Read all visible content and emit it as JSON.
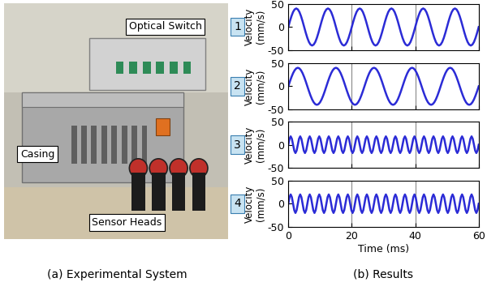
{
  "panel_a": {
    "labels": [
      "Optical Switch",
      "Casing",
      "Sensor Heads"
    ],
    "caption": "(a) Experimental System"
  },
  "panel_b": {
    "caption": "(b) Results"
  },
  "chart_data": [
    {
      "type": "line",
      "title": "1",
      "y_label": "Velocity\n(mm/s)",
      "x": [
        0,
        0.5,
        1,
        1.5,
        2,
        2.5,
        3,
        3.5,
        4,
        4.5,
        5,
        5.5,
        6,
        6.5,
        7,
        7.5,
        8,
        8.5,
        9,
        9.5,
        10,
        10.5,
        11,
        11.5,
        12,
        12.5,
        13,
        13.5,
        14,
        14.5,
        15,
        15.5,
        16,
        16.5,
        17,
        17.5,
        18,
        18.5,
        19,
        19.5,
        20,
        20.5,
        21,
        21.5,
        22,
        22.5,
        23,
        23.5,
        24,
        24.5,
        25,
        25.5,
        26,
        26.5,
        27,
        27.5,
        28,
        28.5,
        29,
        29.5,
        30,
        30.5,
        31,
        31.5,
        32,
        32.5,
        33,
        33.5,
        34,
        34.5,
        35,
        35.5,
        36,
        36.5,
        37,
        37.5,
        38,
        38.5,
        39,
        39.5,
        40,
        40.5,
        41,
        41.5,
        42,
        42.5,
        43,
        43.5,
        44,
        44.5,
        45,
        45.5,
        46,
        46.5,
        47,
        47.5,
        48,
        48.5,
        49,
        49.5,
        50,
        50.5,
        51,
        51.5,
        52,
        52.5,
        53,
        53.5,
        54,
        54.5,
        55,
        55.5,
        56,
        56.5,
        57,
        57.5,
        58,
        58.5,
        59,
        59.5,
        60
      ],
      "series": [
        {
          "color": "#2b2bd6",
          "values": [
            0,
            12.4,
            23.5,
            32.4,
            38,
            40,
            38,
            32.4,
            23.5,
            12.4,
            0,
            -12.4,
            -23.5,
            -32.4,
            -38,
            -40,
            -38,
            -32.4,
            -23.5,
            -12.4,
            0,
            12.4,
            23.5,
            32.4,
            38,
            40,
            38,
            32.4,
            23.5,
            12.4,
            0,
            -12.4,
            -23.5,
            -32.4,
            -38,
            -40,
            -38,
            -32.4,
            -23.5,
            -12.4,
            0,
            12.4,
            23.5,
            32.4,
            38,
            40,
            38,
            32.4,
            23.5,
            12.4,
            0,
            -12.4,
            -23.5,
            -32.4,
            -38,
            -40,
            -38,
            -32.4,
            -23.5,
            -12.4,
            0,
            12.4,
            23.5,
            32.4,
            38,
            40,
            38,
            32.4,
            23.5,
            12.4,
            0,
            -12.4,
            -23.5,
            -32.4,
            -38,
            -40,
            -38,
            -32.4,
            -23.5,
            -12.4,
            0,
            12.4,
            23.5,
            32.4,
            38,
            40,
            38,
            32.4,
            23.5,
            12.4,
            0,
            -12.4,
            -23.5,
            -32.4,
            -38,
            -40,
            -38,
            -32.4,
            -23.5,
            -12.4,
            0,
            12.4,
            23.5,
            32.4,
            38,
            40,
            38,
            32.4,
            23.5,
            12.4,
            0,
            -12.4,
            -23.5,
            -32.4,
            -38,
            -40,
            -38,
            -32.4,
            -23.5,
            -12.4,
            0
          ]
        }
      ],
      "xlim": [
        0,
        60
      ],
      "xticks": [
        0,
        20,
        40,
        60
      ],
      "ylim": [
        -50,
        50
      ],
      "yticks": [
        -50,
        0,
        50
      ],
      "grid": "x",
      "tick_labels": "y"
    },
    {
      "type": "line",
      "title": "2",
      "y_label": "Velocity\n(mm/s)",
      "x": [
        0,
        0.5,
        1,
        1.5,
        2,
        2.5,
        3,
        3.5,
        4,
        4.5,
        5,
        5.5,
        6,
        6.5,
        7,
        7.5,
        8,
        8.5,
        9,
        9.5,
        10,
        10.5,
        11,
        11.5,
        12,
        12.5,
        13,
        13.5,
        14,
        14.5,
        15,
        15.5,
        16,
        16.5,
        17,
        17.5,
        18,
        18.5,
        19,
        19.5,
        20,
        20.5,
        21,
        21.5,
        22,
        22.5,
        23,
        23.5,
        24,
        24.5,
        25,
        25.5,
        26,
        26.5,
        27,
        27.5,
        28,
        28.5,
        29,
        29.5,
        30,
        30.5,
        31,
        31.5,
        32,
        32.5,
        33,
        33.5,
        34,
        34.5,
        35,
        35.5,
        36,
        36.5,
        37,
        37.5,
        38,
        38.5,
        39,
        39.5,
        40,
        40.5,
        41,
        41.5,
        42,
        42.5,
        43,
        43.5,
        44,
        44.5,
        45,
        45.5,
        46,
        46.5,
        47,
        47.5,
        48,
        48.5,
        49,
        49.5,
        50,
        50.5,
        51,
        51.5,
        52,
        52.5,
        53,
        53.5,
        54,
        54.5,
        55,
        55.5,
        56,
        56.5,
        57,
        57.5,
        58,
        58.5,
        59,
        59.5,
        60
      ],
      "series": [
        {
          "color": "#2b2bd6",
          "values": [
            0,
            10.4,
            20,
            28.3,
            34.6,
            38.6,
            40,
            38.6,
            34.6,
            28.3,
            20,
            10.4,
            0,
            -10.4,
            -20,
            -28.3,
            -34.6,
            -38.6,
            -40,
            -38.6,
            -34.6,
            -28.3,
            -20,
            -10.4,
            0,
            10.4,
            20,
            28.3,
            34.6,
            38.6,
            40,
            38.6,
            34.6,
            28.3,
            20,
            10.4,
            0,
            -10.4,
            -20,
            -28.3,
            -34.6,
            -38.6,
            -40,
            -38.6,
            -34.6,
            -28.3,
            -20,
            -10.4,
            0,
            10.4,
            20,
            28.3,
            34.6,
            38.6,
            40,
            38.6,
            34.6,
            28.3,
            20,
            10.4,
            0,
            -10.4,
            -20,
            -28.3,
            -34.6,
            -38.6,
            -40,
            -38.6,
            -34.6,
            -28.3,
            -20,
            -10.4,
            0,
            10.4,
            20,
            28.3,
            34.6,
            38.6,
            40,
            38.6,
            34.6,
            28.3,
            20,
            10.4,
            0,
            -10.4,
            -20,
            -28.3,
            -34.6,
            -38.6,
            -40,
            -38.6,
            -34.6,
            -28.3,
            -20,
            -10.4,
            0,
            10.4,
            20,
            28.3,
            34.6,
            38.6,
            40,
            38.6,
            34.6,
            28.3,
            20,
            10.4,
            0,
            -10.4,
            -20,
            -28.3,
            -34.6,
            -38.6,
            -40,
            -38.6,
            -34.6,
            -28.3,
            -20,
            -10.4,
            0
          ]
        }
      ],
      "xlim": [
        0,
        60
      ],
      "xticks": [
        0,
        20,
        40,
        60
      ],
      "ylim": [
        -50,
        50
      ],
      "yticks": [
        -50,
        0,
        50
      ],
      "grid": "x",
      "tick_labels": "y"
    },
    {
      "type": "line",
      "title": "3",
      "y_label": "Velocity\n(mm/s)",
      "x": [
        0,
        0.375,
        0.75,
        1.125,
        1.5,
        1.875,
        2.25,
        2.625,
        3,
        3.375,
        3.75,
        4.125,
        4.5,
        4.875,
        5.25,
        5.625,
        6,
        6.375,
        6.75,
        7.125,
        7.5,
        7.875,
        8.25,
        8.625,
        9,
        9.375,
        9.75,
        10.125,
        10.5,
        10.875,
        11.25,
        11.625,
        12,
        12.375,
        12.75,
        13.125,
        13.5,
        13.875,
        14.25,
        14.625,
        15,
        15.375,
        15.75,
        16.125,
        16.5,
        16.875,
        17.25,
        17.625,
        18,
        18.375,
        18.75,
        19.125,
        19.5,
        19.875,
        20.25,
        20.625,
        21,
        21.375,
        21.75,
        22.125,
        22.5,
        22.875,
        23.25,
        23.625,
        24,
        24.375,
        24.75,
        25.125,
        25.5,
        25.875,
        26.25,
        26.625,
        27,
        27.375,
        27.75,
        28.125,
        28.5,
        28.875,
        29.25,
        29.625,
        30,
        30.375,
        30.75,
        31.125,
        31.5,
        31.875,
        32.25,
        32.625,
        33,
        33.375,
        33.75,
        34.125,
        34.5,
        34.875,
        35.25,
        35.625,
        36,
        36.375,
        36.75,
        37.125,
        37.5,
        37.875,
        38.25,
        38.625,
        39,
        39.375,
        39.75,
        40.125,
        40.5,
        40.875,
        41.25,
        41.625,
        42,
        42.375,
        42.75,
        43.125,
        43.5,
        43.875,
        44.25,
        44.625,
        45,
        45.375,
        45.75,
        46.125,
        46.5,
        46.875,
        47.25,
        47.625,
        48,
        48.375,
        48.75,
        49.125,
        49.5,
        49.875,
        50.25,
        50.625,
        51,
        51.375,
        51.75,
        52.125,
        52.5,
        52.875,
        53.25,
        53.625,
        54,
        54.375,
        54.75,
        55.125,
        55.5,
        55.875,
        56.25,
        56.625,
        57,
        57.375,
        57.75,
        58.125,
        58.5,
        58.875,
        59.25,
        59.625,
        60
      ],
      "series": [
        {
          "color": "#2b2bd6",
          "values": [
            0,
            12.7,
            18,
            12.7,
            0,
            -12.7,
            -18,
            -12.7,
            0,
            12.7,
            18,
            12.7,
            0,
            -12.7,
            -18,
            -12.7,
            0,
            12.7,
            18,
            12.7,
            0,
            -12.7,
            -18,
            -12.7,
            0,
            12.7,
            18,
            12.7,
            0,
            -12.7,
            -18,
            -12.7,
            0,
            12.7,
            18,
            12.7,
            0,
            -12.7,
            -18,
            -12.7,
            0,
            12.7,
            18,
            12.7,
            0,
            -12.7,
            -18,
            -12.7,
            0,
            12.7,
            18,
            12.7,
            0,
            -12.7,
            -18,
            -12.7,
            0,
            12.7,
            18,
            12.7,
            0,
            -12.7,
            -18,
            -12.7,
            0,
            12.7,
            18,
            12.7,
            0,
            -12.7,
            -18,
            -12.7,
            0,
            12.7,
            18,
            12.7,
            0,
            -12.7,
            -18,
            -12.7,
            0,
            12.7,
            18,
            12.7,
            0,
            -12.7,
            -18,
            -12.7,
            0,
            12.7,
            18,
            12.7,
            0,
            -12.7,
            -18,
            -12.7,
            0,
            12.7,
            18,
            12.7,
            0,
            -12.7,
            -18,
            -12.7,
            0,
            12.7,
            18,
            12.7,
            0,
            -12.7,
            -18,
            -12.7,
            0,
            12.7,
            18,
            12.7,
            0,
            -12.7,
            -18,
            -12.7,
            0,
            12.7,
            18,
            12.7,
            0,
            -12.7,
            -18,
            -12.7,
            0,
            12.7,
            18,
            12.7,
            0,
            -12.7,
            -18,
            -12.7,
            0,
            12.7,
            18,
            12.7,
            0,
            -12.7,
            -18,
            -12.7,
            0,
            12.7,
            18,
            12.7,
            0,
            -12.7,
            -18,
            -12.7,
            0,
            12.7,
            18,
            12.7,
            0,
            -12.7,
            -18,
            -12.7,
            0
          ]
        }
      ],
      "xlim": [
        0,
        60
      ],
      "xticks": [
        0,
        20,
        40,
        60
      ],
      "ylim": [
        -50,
        50
      ],
      "yticks": [
        -50,
        0,
        50
      ],
      "grid": "x",
      "tick_labels": "y"
    },
    {
      "type": "line",
      "title": "4",
      "y_label": "Velocity\n(mm/s)",
      "x_label": "Time (ms)",
      "x": [
        0,
        0.375,
        0.75,
        1.125,
        1.5,
        1.875,
        2.25,
        2.625,
        3,
        3.375,
        3.75,
        4.125,
        4.5,
        4.875,
        5.25,
        5.625,
        6,
        6.375,
        6.75,
        7.125,
        7.5,
        7.875,
        8.25,
        8.625,
        9,
        9.375,
        9.75,
        10.125,
        10.5,
        10.875,
        11.25,
        11.625,
        12,
        12.375,
        12.75,
        13.125,
        13.5,
        13.875,
        14.25,
        14.625,
        15,
        15.375,
        15.75,
        16.125,
        16.5,
        16.875,
        17.25,
        17.625,
        18,
        18.375,
        18.75,
        19.125,
        19.5,
        19.875,
        20.25,
        20.625,
        21,
        21.375,
        21.75,
        22.125,
        22.5,
        22.875,
        23.25,
        23.625,
        24,
        24.375,
        24.75,
        25.125,
        25.5,
        25.875,
        26.25,
        26.625,
        27,
        27.375,
        27.75,
        28.125,
        28.5,
        28.875,
        29.25,
        29.625,
        30,
        30.375,
        30.75,
        31.125,
        31.5,
        31.875,
        32.25,
        32.625,
        33,
        33.375,
        33.75,
        34.125,
        34.5,
        34.875,
        35.25,
        35.625,
        36,
        36.375,
        36.75,
        37.125,
        37.5,
        37.875,
        38.25,
        38.625,
        39,
        39.375,
        39.75,
        40.125,
        40.5,
        40.875,
        41.25,
        41.625,
        42,
        42.375,
        42.75,
        43.125,
        43.5,
        43.875,
        44.25,
        44.625,
        45,
        45.375,
        45.75,
        46.125,
        46.5,
        46.875,
        47.25,
        47.625,
        48,
        48.375,
        48.75,
        49.125,
        49.5,
        49.875,
        50.25,
        50.625,
        51,
        51.375,
        51.75,
        52.125,
        52.5,
        52.875,
        53.25,
        53.625,
        54,
        54.375,
        54.75,
        55.125,
        55.5,
        55.875,
        56.25,
        56.625,
        57,
        57.375,
        57.75,
        58.125,
        58.5,
        58.875,
        59.25,
        59.625,
        60
      ],
      "series": [
        {
          "color": "#2b2bd6",
          "values": [
            0,
            14.1,
            20,
            14.1,
            0,
            -14.1,
            -20,
            -14.1,
            0,
            14.1,
            20,
            14.1,
            0,
            -14.1,
            -20,
            -14.1,
            0,
            14.1,
            20,
            14.1,
            0,
            -14.1,
            -20,
            -14.1,
            0,
            14.1,
            20,
            14.1,
            0,
            -14.1,
            -20,
            -14.1,
            0,
            14.1,
            20,
            14.1,
            0,
            -14.1,
            -20,
            -14.1,
            0,
            14.1,
            20,
            14.1,
            0,
            -14.1,
            -20,
            -14.1,
            0,
            14.1,
            20,
            14.1,
            0,
            -14.1,
            -20,
            -14.1,
            0,
            14.1,
            20,
            14.1,
            0,
            -14.1,
            -20,
            -14.1,
            0,
            14.1,
            20,
            14.1,
            0,
            -14.1,
            -20,
            -14.1,
            0,
            14.1,
            20,
            14.1,
            0,
            -14.1,
            -20,
            -14.1,
            0,
            14.1,
            20,
            14.1,
            0,
            -14.1,
            -20,
            -14.1,
            0,
            14.1,
            20,
            14.1,
            0,
            -14.1,
            -20,
            -14.1,
            0,
            14.1,
            20,
            14.1,
            0,
            -14.1,
            -20,
            -14.1,
            0,
            14.1,
            20,
            14.1,
            0,
            -14.1,
            -20,
            -14.1,
            0,
            14.1,
            20,
            14.1,
            0,
            -14.1,
            -20,
            -14.1,
            0,
            14.1,
            20,
            14.1,
            0,
            -14.1,
            -20,
            -14.1,
            0,
            14.1,
            20,
            14.1,
            0,
            -14.1,
            -20,
            -14.1,
            0,
            14.1,
            20,
            14.1,
            0,
            -14.1,
            -20,
            -14.1,
            0,
            14.1,
            20,
            14.1,
            0,
            -14.1,
            -20,
            -14.1,
            0,
            14.1,
            20,
            14.1,
            0,
            -14.1,
            -20,
            -14.1,
            0
          ]
        }
      ],
      "xlim": [
        0,
        60
      ],
      "xticks": [
        0,
        20,
        40,
        60
      ],
      "ylim": [
        -50,
        50
      ],
      "yticks": [
        -50,
        0,
        50
      ],
      "grid": "x"
    }
  ]
}
